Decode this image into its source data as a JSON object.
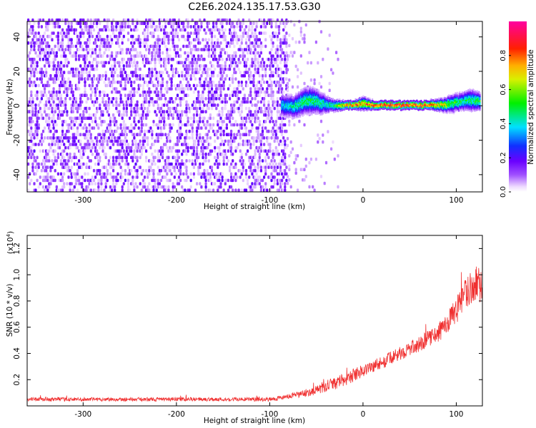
{
  "figure": {
    "title": "C2E6.2024.135.17.53.G30"
  },
  "chart_data": [
    {
      "type": "heatmap",
      "xlabel": "Height of straight line (km)",
      "ylabel": "Frequency (Hz)",
      "xlim": [
        -360,
        128
      ],
      "ylim": [
        -50,
        49
      ],
      "xticks": [
        -300,
        -200,
        -100,
        0,
        100
      ],
      "yticks": [
        -40,
        -20,
        0,
        20,
        40
      ],
      "noise_region": {
        "x_range": [
          -360,
          -82
        ],
        "description_fill": "scattered purple noise"
      },
      "sparse_region": {
        "x_range": [
          -82,
          -25
        ]
      },
      "signal_track": {
        "description": "narrow band centred near 0 Hz",
        "x": [
          -88,
          -75,
          -65,
          -55,
          -45,
          -35,
          -20,
          -10,
          0,
          10,
          30,
          50,
          70,
          85,
          95,
          105,
          115,
          125
        ],
        "freq_center": [
          0,
          -1,
          2,
          3,
          1,
          0,
          0,
          0,
          1,
          0,
          0,
          0,
          0,
          0,
          1,
          2,
          3,
          2
        ],
        "half_width": [
          5,
          5,
          6,
          6,
          5,
          3,
          2,
          2,
          3,
          2,
          2,
          2,
          2,
          3,
          4,
          4,
          5,
          4
        ],
        "peak_amplitude": [
          0.4,
          0.45,
          0.5,
          0.5,
          0.45,
          0.45,
          0.8,
          0.85,
          0.8,
          0.85,
          0.9,
          0.9,
          0.85,
          0.7,
          0.55,
          0.5,
          0.5,
          0.55
        ]
      },
      "colorbar": {
        "label": "Normalized spectral amplitude",
        "range": [
          0,
          1
        ],
        "ticks": [
          "0.0",
          "0.2",
          "0.4",
          "0.6",
          "0.8"
        ],
        "tick_values": [
          0,
          0.2,
          0.4,
          0.6,
          0.8
        ],
        "colormap": "rainbow (white-purple-blue-cyan-green-yellow-red-magenta)"
      }
    },
    {
      "type": "line",
      "xlabel": "Height of straight line (km)",
      "ylabel": "SNR (10 * v/v)",
      "scale_label": "(x10",
      "scale_exp": "4",
      "scale_close": ")",
      "xlim": [
        -360,
        128
      ],
      "ylim": [
        0,
        1.3
      ],
      "xticks": [
        -300,
        -200,
        -100,
        0,
        100
      ],
      "yticks": [
        "0.2",
        "0.4",
        "0.6",
        "0.8",
        "1.0",
        "1.2"
      ],
      "ytick_values": [
        0.2,
        0.4,
        0.6,
        0.8,
        1.0,
        1.2
      ],
      "series": [
        {
          "color": "#f03030",
          "x": [
            -360,
            -300,
            -250,
            -200,
            -150,
            -100,
            -80,
            -60,
            -40,
            -20,
            0,
            20,
            40,
            60,
            80,
            100,
            110,
            120,
            128
          ],
          "y": [
            0.05,
            0.05,
            0.05,
            0.05,
            0.05,
            0.05,
            0.07,
            0.1,
            0.14,
            0.2,
            0.27,
            0.33,
            0.4,
            0.47,
            0.55,
            0.72,
            0.85,
            0.95,
            0.9
          ],
          "noise_amp": [
            0.015,
            0.015,
            0.015,
            0.015,
            0.015,
            0.015,
            0.02,
            0.03,
            0.04,
            0.05,
            0.05,
            0.05,
            0.05,
            0.06,
            0.07,
            0.1,
            0.12,
            0.14,
            0.12
          ]
        }
      ]
    }
  ]
}
